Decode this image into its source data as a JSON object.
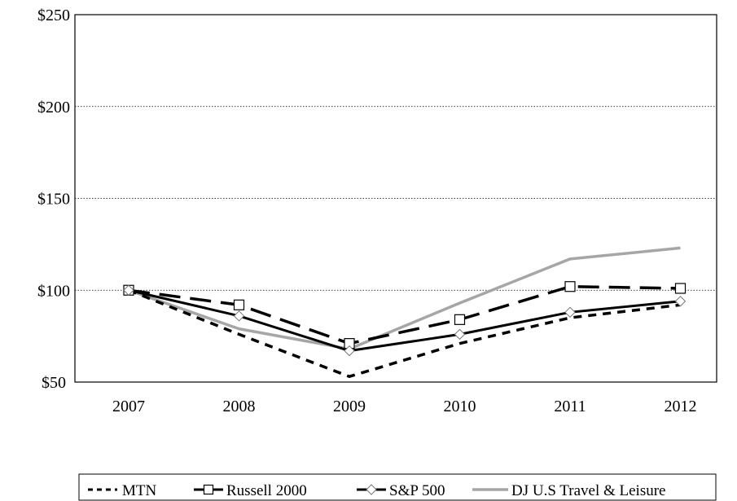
{
  "chart_data": {
    "type": "line",
    "title": "",
    "xlabel": "",
    "ylabel": "",
    "categories": [
      "2007",
      "2008",
      "2009",
      "2010",
      "2011",
      "2012"
    ],
    "ylim": [
      50,
      250
    ],
    "yticks": [
      50,
      100,
      150,
      200,
      250
    ],
    "ytick_labels": [
      "$50",
      "$100",
      "$150",
      "$200",
      "$250"
    ],
    "grid": "horizontal dotted",
    "legend_position": "bottom",
    "series": [
      {
        "name": "MTN",
        "values": [
          100,
          76,
          53,
          71,
          85,
          92
        ],
        "color": "#000000",
        "style": "short-dash",
        "marker": "none"
      },
      {
        "name": "Russell 2000",
        "values": [
          100,
          92,
          71,
          84,
          102,
          101
        ],
        "color": "#000000",
        "style": "long-dash",
        "marker": "square"
      },
      {
        "name": "S&P 500",
        "values": [
          100,
          86,
          67,
          76,
          88,
          94
        ],
        "color": "#000000",
        "style": "solid",
        "marker": "diamond"
      },
      {
        "name": "DJ U.S Travel & Leisure",
        "values": [
          100,
          79,
          68,
          93,
          117,
          123
        ],
        "color": "#a6a6a6",
        "style": "solid",
        "marker": "none"
      }
    ]
  }
}
